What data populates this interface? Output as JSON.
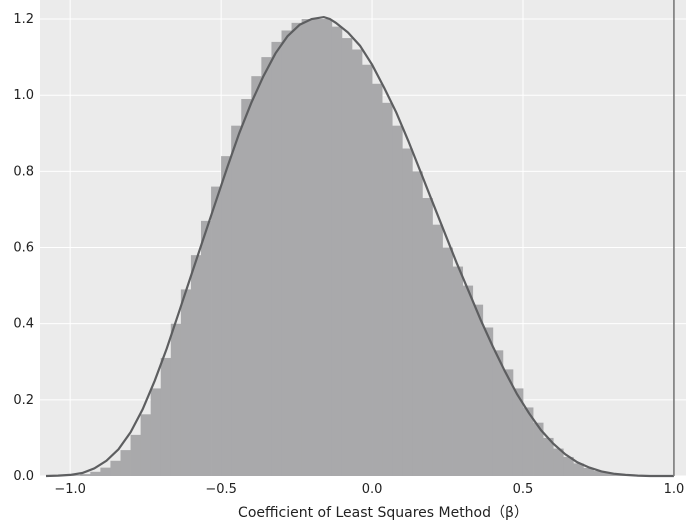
{
  "chart_data": {
    "type": "bar",
    "title": "",
    "xlabel": "Coefficient of Least Squares Method（β）",
    "ylabel": "",
    "xlim": [
      -1.1,
      1.04
    ],
    "ylim": [
      0,
      1.25
    ],
    "grid": true,
    "legend": "none",
    "xticks": [
      -1.0,
      -0.5,
      0.0,
      0.5,
      1.0
    ],
    "xtick_labels": [
      "−1.0",
      "−0.5",
      "0.0",
      "0.5",
      "1.0"
    ],
    "yticks": [
      0.0,
      0.2,
      0.4,
      0.6,
      0.8,
      1.0,
      1.2
    ],
    "ytick_labels": [
      "0.0",
      "0.2",
      "0.4",
      "0.6",
      "0.8",
      "1.0",
      "1.2"
    ],
    "vertical_line_x": 1.0,
    "bin_width": 0.0333,
    "bins_x": [
      -1.0,
      -0.9667,
      -0.9333,
      -0.9,
      -0.8667,
      -0.8333,
      -0.8,
      -0.7667,
      -0.7333,
      -0.7,
      -0.6667,
      -0.6333,
      -0.6,
      -0.5667,
      -0.5333,
      -0.5,
      -0.4667,
      -0.4333,
      -0.4,
      -0.3667,
      -0.3333,
      -0.3,
      -0.2667,
      -0.2333,
      -0.2,
      -0.1667,
      -0.1333,
      -0.1,
      -0.0667,
      -0.0333,
      0.0,
      0.0333,
      0.0667,
      0.1,
      0.1333,
      0.1667,
      0.2,
      0.2333,
      0.2667,
      0.3,
      0.3333,
      0.3667,
      0.4,
      0.4333,
      0.4667,
      0.5,
      0.5333,
      0.5667,
      0.6,
      0.6333,
      0.6667,
      0.7,
      0.7333,
      0.7667,
      0.8,
      0.8333,
      0.8667,
      0.9,
      0.9333,
      0.9667
    ],
    "bins_y": [
      0.002,
      0.005,
      0.011,
      0.022,
      0.04,
      0.068,
      0.108,
      0.162,
      0.23,
      0.31,
      0.4,
      0.49,
      0.58,
      0.67,
      0.76,
      0.84,
      0.92,
      0.99,
      1.05,
      1.1,
      1.14,
      1.17,
      1.19,
      1.2,
      1.2,
      1.2,
      1.18,
      1.15,
      1.12,
      1.08,
      1.03,
      0.98,
      0.92,
      0.86,
      0.8,
      0.73,
      0.66,
      0.6,
      0.55,
      0.5,
      0.45,
      0.39,
      0.33,
      0.28,
      0.23,
      0.18,
      0.14,
      0.1,
      0.072,
      0.05,
      0.033,
      0.021,
      0.013,
      0.008,
      0.004,
      0.002,
      0.001,
      0.0,
      0.0,
      0.0
    ],
    "density_curve": {
      "x": [
        -1.08,
        -1.04,
        -1.0,
        -0.96,
        -0.92,
        -0.88,
        -0.84,
        -0.8,
        -0.76,
        -0.72,
        -0.68,
        -0.64,
        -0.6,
        -0.56,
        -0.52,
        -0.48,
        -0.44,
        -0.4,
        -0.36,
        -0.32,
        -0.28,
        -0.24,
        -0.2,
        -0.16,
        -0.14,
        -0.12,
        -0.08,
        -0.04,
        0.0,
        0.04,
        0.08,
        0.12,
        0.16,
        0.2,
        0.24,
        0.28,
        0.32,
        0.36,
        0.4,
        0.44,
        0.48,
        0.52,
        0.56,
        0.6,
        0.64,
        0.68,
        0.72,
        0.76,
        0.8,
        0.84,
        0.88,
        0.92,
        0.96,
        1.0
      ],
      "y": [
        0.0,
        0.001,
        0.003,
        0.008,
        0.02,
        0.04,
        0.07,
        0.115,
        0.175,
        0.25,
        0.335,
        0.43,
        0.525,
        0.62,
        0.715,
        0.81,
        0.9,
        0.98,
        1.05,
        1.11,
        1.155,
        1.185,
        1.2,
        1.205,
        1.2,
        1.19,
        1.165,
        1.13,
        1.08,
        1.02,
        0.955,
        0.88,
        0.8,
        0.72,
        0.64,
        0.56,
        0.485,
        0.41,
        0.34,
        0.275,
        0.215,
        0.165,
        0.12,
        0.085,
        0.057,
        0.036,
        0.022,
        0.012,
        0.006,
        0.003,
        0.001,
        0.0,
        0.0,
        0.0
      ]
    },
    "colors": {
      "background": "#ebebeb",
      "grid": "#ffffff",
      "bars": "#a9a9ab",
      "curve": "#5d5e60",
      "vline": "#7a7a7a"
    }
  }
}
